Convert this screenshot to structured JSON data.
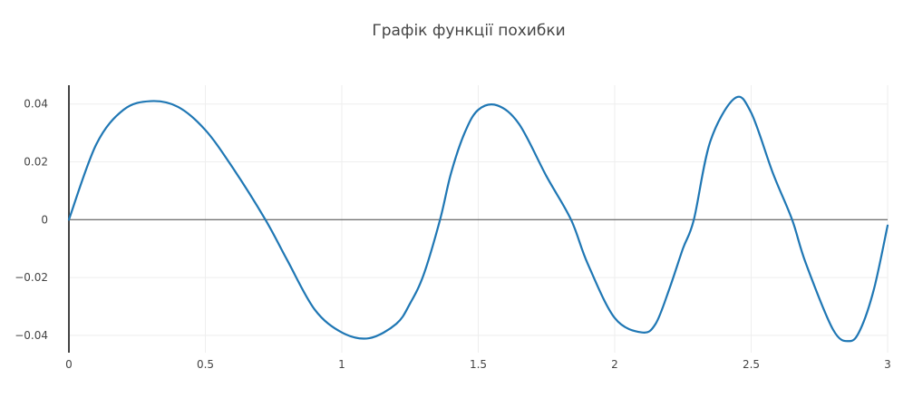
{
  "chart_data": {
    "type": "line",
    "title": "Графік функції похибки",
    "xlabel": "",
    "ylabel": "",
    "xlim": [
      0,
      3
    ],
    "ylim": [
      -0.046,
      0.0465
    ],
    "x_ticks": [
      0,
      0.5,
      1,
      1.5,
      2,
      2.5,
      3
    ],
    "x_tick_labels": [
      "0",
      "0.5",
      "1",
      "1.5",
      "2",
      "2.5",
      "3"
    ],
    "y_ticks": [
      -0.04,
      -0.02,
      0,
      0.02,
      0.04
    ],
    "y_tick_labels": [
      "−0.04",
      "−0.02",
      "0",
      "0.02",
      "0.04"
    ],
    "grid": true,
    "legend": "none",
    "colors": {
      "line": "#1f77b4",
      "grid": "#eeeeee",
      "zeroline": "#444444",
      "text": "#444444"
    },
    "series": [
      {
        "x": [
          0,
          0.1,
          0.2,
          0.3,
          0.4,
          0.5,
          0.6,
          0.72,
          0.8,
          0.9,
          1.0,
          1.1,
          1.2,
          1.25,
          1.3,
          1.36,
          1.4,
          1.45,
          1.5,
          1.57,
          1.65,
          1.75,
          1.84,
          1.9,
          2.0,
          2.1,
          2.15,
          2.2,
          2.25,
          2.29,
          2.35,
          2.44,
          2.5,
          2.58,
          2.65,
          2.7,
          2.8,
          2.86,
          2.9,
          2.95,
          3.0
        ],
        "y": [
          0,
          0.026,
          0.038,
          0.041,
          0.039,
          0.031,
          0.018,
          0,
          -0.014,
          -0.031,
          -0.039,
          -0.041,
          -0.036,
          -0.029,
          -0.019,
          0,
          0.016,
          0.03,
          0.038,
          0.0395,
          0.033,
          0.015,
          0,
          -0.015,
          -0.034,
          -0.039,
          -0.036,
          -0.024,
          -0.01,
          0,
          0.027,
          0.042,
          0.037,
          0.016,
          0,
          -0.015,
          -0.038,
          -0.042,
          -0.038,
          -0.024,
          -0.002
        ]
      }
    ]
  }
}
